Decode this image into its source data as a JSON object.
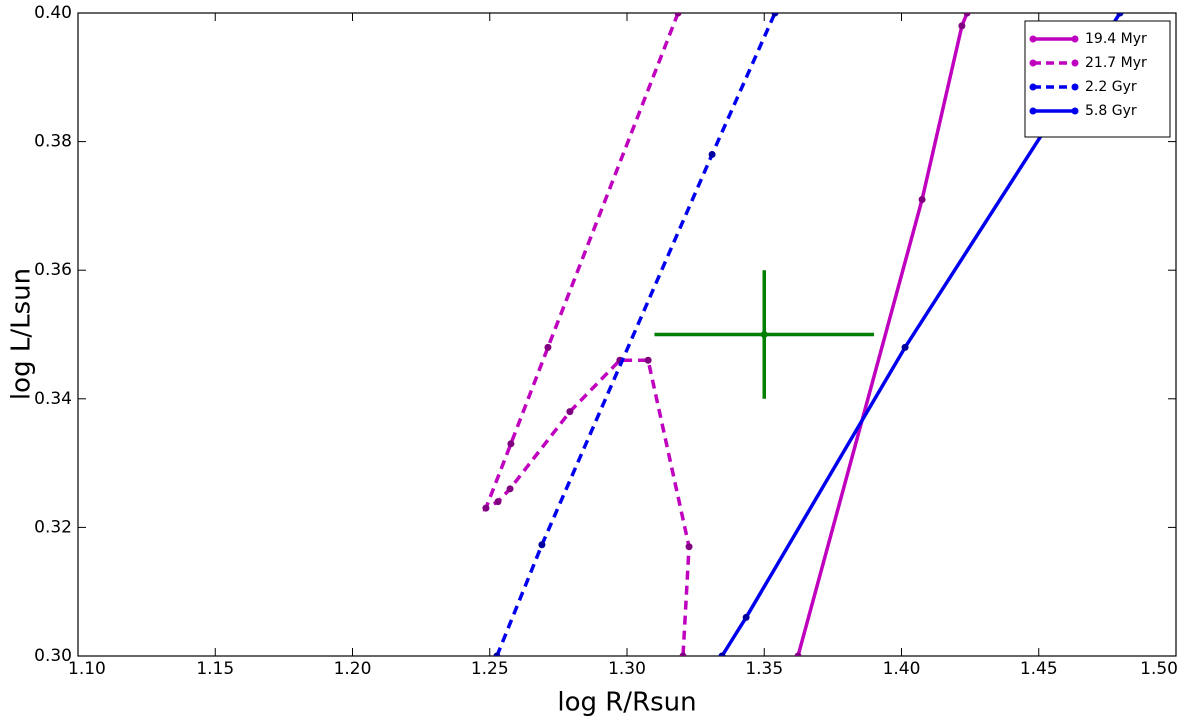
{
  "chart_data": {
    "type": "line",
    "xlabel": "log R/Rsun",
    "ylabel": "log L/Lsun",
    "xlim": [
      1.1,
      1.5
    ],
    "xticks": [
      {
        "value": 1.1,
        "label": "1.10"
      },
      1.15,
      {
        "value": 1.2,
        "label": "1.20"
      },
      1.25,
      {
        "value": 1.3,
        "label": "1.30"
      },
      1.35,
      {
        "value": 1.4,
        "label": "1.40"
      },
      1.45,
      {
        "value": 1.5,
        "label": "1.50"
      }
    ],
    "ylim": [
      0.3,
      0.4
    ],
    "yticks": [
      {
        "value": 0.3,
        "label": "0.30"
      },
      0.32,
      0.34,
      0.36,
      0.38,
      {
        "value": 0.4,
        "label": "0.40"
      }
    ],
    "legend": "upper right",
    "series": [
      {
        "name": "19.4 Myr",
        "color": "#bf00bf",
        "style": "solid",
        "x": [
          1.3623,
          1.4075,
          1.422,
          1.4239
        ],
        "values": [
          0.3,
          0.371,
          0.398,
          0.4
        ]
      },
      {
        "name": "21.7 Myr",
        "color": "#bf00bf",
        "style": "dashed",
        "x": [
          1.3186,
          1.2712,
          1.2577,
          1.2486,
          1.253,
          1.2574,
          1.2792,
          1.2974,
          1.3077,
          1.3226,
          1.3204
        ],
        "values": [
          0.4,
          0.348,
          0.333,
          0.323,
          0.324,
          0.326,
          0.338,
          0.346,
          0.346,
          0.317,
          0.3
        ]
      },
      {
        "name": "2.2 Gyr",
        "color": "#0000ee",
        "style": "dashed",
        "x": [
          1.2526,
          1.269,
          1.331,
          1.3539
        ],
        "values": [
          0.3,
          0.3173,
          0.378,
          0.4
        ]
      },
      {
        "name": "5.8 Gyr",
        "color": "#0000ee",
        "style": "solid",
        "x": [
          1.3346,
          1.3434,
          1.4013,
          1.4796
        ],
        "values": [
          0.3,
          0.306,
          0.348,
          0.4
        ]
      }
    ],
    "point": {
      "x": 1.35,
      "y": 0.35,
      "xerr": 0.04,
      "yerr": 0.01,
      "color": "#007f00"
    }
  }
}
